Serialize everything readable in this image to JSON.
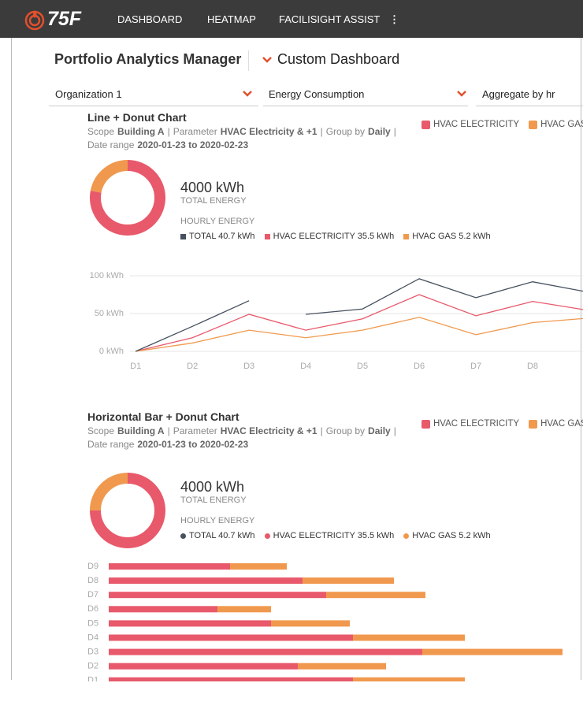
{
  "nav": {
    "logo": "75F",
    "items": [
      "DASHBOARD",
      "HEATMAP",
      "FACILISIGHT ASSIST"
    ],
    "more": "⋮"
  },
  "header": {
    "title": "Portfolio Analytics Manager",
    "dashboard": "Custom Dashboard"
  },
  "filters": [
    "Organization 1",
    "Energy Consumption",
    "Aggregate by hr"
  ],
  "chart_data": [
    {
      "type": "line",
      "title": "Line + Donut Chart",
      "meta": [
        [
          "Scope",
          "Building A"
        ],
        [
          "Parameter",
          "HVAC Electricity & +1"
        ],
        [
          "Group by",
          "Daily"
        ]
      ],
      "date_range": [
        "Date range",
        "2020-01-23 to 2020-02-23"
      ],
      "total": "4000 kWh",
      "total_label": "TOTAL ENERGY",
      "hourly_label": "HOURLY ENERGY",
      "hourly": [
        {
          "name": "TOTAL 40.7 kWh",
          "color": "#46505e"
        },
        {
          "name": "HVAC ELECTRICITY 35.5 kWh",
          "color": "#e8596b"
        },
        {
          "name": "HVAC GAS 5.2 kWh",
          "color": "#f0994e"
        }
      ],
      "donut": [
        78,
        22
      ],
      "xticks": [
        {
          "value": 1,
          "label": "D1"
        },
        {
          "value": 2,
          "label": "D2"
        },
        {
          "value": 3,
          "label": "D3"
        },
        {
          "value": 4,
          "label": "D4"
        },
        {
          "value": 5,
          "label": "D5"
        },
        {
          "value": 6,
          "label": "D6"
        },
        {
          "value": 7,
          "label": "D7"
        },
        {
          "value": 8,
          "label": "D8"
        }
      ],
      "xlim": [
        0.15,
        9
      ],
      "ylim": [
        0,
        100
      ],
      "yticks": [
        {
          "value": 0,
          "label": "0 kWh"
        },
        {
          "value": 50,
          "label": "50 kWh"
        },
        {
          "value": 100,
          "label": "100 kWh"
        }
      ],
      "grid": true,
      "series": [
        {
          "name": "HVAC ELECTRICITY",
          "color": "#e8596b",
          "x": [
            1,
            2,
            3,
            4,
            5,
            6,
            7,
            8,
            9
          ],
          "values": [
            0,
            18,
            49,
            28,
            43,
            75,
            47,
            66,
            54
          ]
        },
        {
          "name": "HVAC GAS",
          "color": "#f0994e",
          "x": [
            1,
            2,
            3,
            4,
            5,
            6,
            7,
            8,
            9
          ],
          "values": [
            0,
            11,
            28,
            18,
            28,
            45,
            22,
            38,
            44
          ]
        }
      ],
      "total_line": {
        "color": "#46505e",
        "x": [
          1,
          2,
          3,
          3.5,
          4,
          5,
          6,
          7,
          8,
          9
        ],
        "values": [
          0,
          33,
          67,
          null,
          49,
          56,
          96,
          71,
          92,
          78
        ]
      }
    },
    {
      "type": "hbar",
      "title": "Horizontal Bar + Donut Chart",
      "meta": [
        [
          "Scope",
          "Building A"
        ],
        [
          "Parameter",
          "HVAC Electricity & +1"
        ],
        [
          "Group by",
          "Daily"
        ]
      ],
      "date_range": [
        "Date range",
        "2020-01-23 to 2020-02-23"
      ],
      "total": "4000 kWh",
      "total_label": "TOTAL ENERGY",
      "hourly_label": "HOURLY ENERGY",
      "hourly": [
        {
          "name": "TOTAL 40.7 kWh",
          "color": "#46505e"
        },
        {
          "name": "HVAC ELECTRICITY 35.5 kWh",
          "color": "#e8596b"
        },
        {
          "name": "HVAC GAS 5.2 kWh",
          "color": "#f0994e"
        }
      ],
      "donut": [
        75,
        25
      ],
      "categories": [
        "D1",
        "D2",
        "D3",
        "D4",
        "D5",
        "D6",
        "D7",
        "D8",
        "D9"
      ],
      "xlim": [
        0,
        150
      ],
      "series": [
        {
          "name": "HVAC ELECTRICITY",
          "color": "#e8596b",
          "values": [
            77.5,
            60,
            99.5,
            77.5,
            51.5,
            34.5,
            69,
            61.5,
            38.5
          ]
        },
        {
          "name": "HVAC GAS",
          "color": "#f0994e",
          "values": [
            35.5,
            28,
            44.5,
            35.5,
            25,
            17,
            31.5,
            29,
            18
          ]
        }
      ]
    }
  ]
}
